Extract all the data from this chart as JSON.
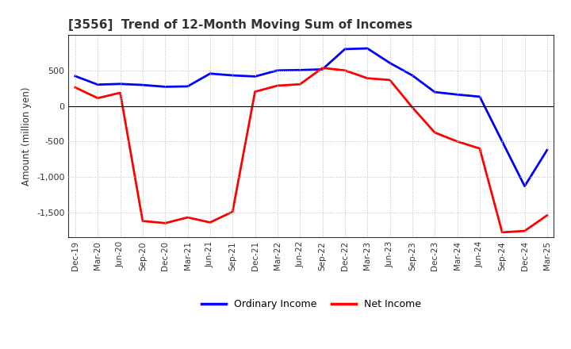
{
  "title": "[3556]  Trend of 12-Month Moving Sum of Incomes",
  "ylabel": "Amount (million yen)",
  "xlabels": [
    "Dec-19",
    "Mar-20",
    "Jun-20",
    "Sep-20",
    "Dec-20",
    "Mar-21",
    "Jun-21",
    "Sep-21",
    "Dec-21",
    "Mar-22",
    "Jun-22",
    "Sep-22",
    "Dec-22",
    "Mar-23",
    "Jun-23",
    "Sep-23",
    "Dec-23",
    "Mar-24",
    "Jun-24",
    "Sep-24",
    "Dec-24",
    "Mar-25"
  ],
  "ordinary_income": [
    420,
    300,
    310,
    295,
    270,
    275,
    455,
    430,
    415,
    500,
    505,
    515,
    800,
    810,
    605,
    430,
    195,
    160,
    130,
    -500,
    -1130,
    -620
  ],
  "net_income": [
    260,
    110,
    185,
    -1620,
    -1650,
    -1570,
    -1640,
    -1490,
    200,
    285,
    305,
    535,
    500,
    390,
    365,
    -20,
    -375,
    -500,
    -600,
    -1780,
    -1760,
    -1540
  ],
  "ordinary_color": "#0000ff",
  "net_color": "#ff0000",
  "background_color": "#ffffff",
  "grid_color": "#bbbbbb",
  "ylim": [
    -1850,
    1000
  ],
  "yticks": [
    500,
    0,
    -500,
    -1000,
    -1500
  ],
  "legend_labels": [
    "Ordinary Income",
    "Net Income"
  ],
  "linewidth": 2.0,
  "title_color": "#333333"
}
